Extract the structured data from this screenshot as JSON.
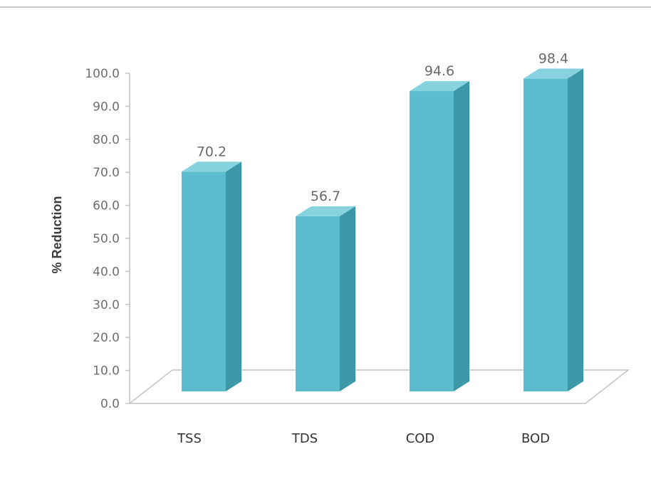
{
  "chart_data": {
    "type": "bar",
    "categories": [
      "TSS",
      "TDS",
      "COD",
      "BOD"
    ],
    "values": [
      70.2,
      56.7,
      94.6,
      98.4
    ],
    "value_labels": [
      "70.2",
      "56.7",
      "94.6",
      "98.4"
    ],
    "title": "",
    "xlabel": "",
    "ylabel": "% Reduction",
    "ylim": [
      0,
      100
    ],
    "y_ticks": [
      "0.0",
      "10.0",
      "20.0",
      "30.0",
      "40.0",
      "50.0",
      "60.0",
      "70.0",
      "80.0",
      "90.0",
      "100.0"
    ],
    "grid": false,
    "legend": "none",
    "style": "3d-column",
    "colors": {
      "bar_front": "#5bbccd",
      "bar_side": "#3a98a9",
      "bar_top": "#87d2df",
      "axis": "#b8b8b8"
    }
  }
}
